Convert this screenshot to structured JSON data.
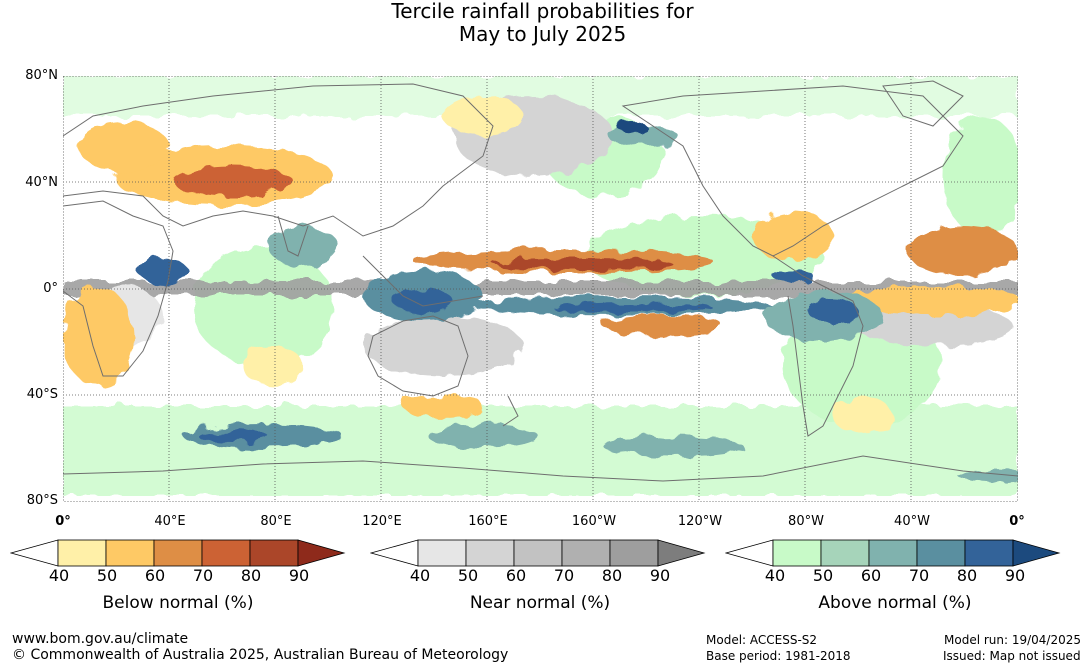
{
  "title": {
    "line1": "Tercile rainfall probabilities for",
    "line2": "May to July 2025"
  },
  "map": {
    "lat_labels": [
      "80°N",
      "40°N",
      "0°",
      "40°S",
      "80°S"
    ],
    "lon_labels": [
      "0°",
      "40°E",
      "80°E",
      "120°E",
      "160°E",
      "160°W",
      "120°W",
      "80°W",
      "40°W",
      "0°"
    ],
    "colors": {
      "ocean_land_base": "#ffffff",
      "coastline": "#6e6e6e",
      "gridline": "#555555"
    }
  },
  "colorbars": [
    {
      "id": "below",
      "title": "Below normal (%)",
      "ticks": [
        "40",
        "50",
        "60",
        "70",
        "80",
        "90"
      ],
      "colors": [
        "#fff0a8",
        "#fec965",
        "#de8e45",
        "#cc6234",
        "#ab4629",
        "#8e2a1b"
      ]
    },
    {
      "id": "near",
      "title": "Near normal (%)",
      "ticks": [
        "40",
        "50",
        "60",
        "70",
        "80",
        "90"
      ],
      "colors": [
        "#e6e6e6",
        "#d4d4d4",
        "#c2c2c2",
        "#b0b0b0",
        "#9e9e9e",
        "#7d7d7d"
      ]
    },
    {
      "id": "above",
      "title": "Above normal (%)",
      "ticks": [
        "40",
        "50",
        "60",
        "70",
        "80",
        "90"
      ],
      "colors": [
        "#c8fac8",
        "#a6d4ba",
        "#80b2ae",
        "#5a8fa0",
        "#336399",
        "#1c4a7e"
      ]
    }
  ],
  "footer": {
    "url": "www.bom.gov.au/climate",
    "copyright": "© Commonwealth of Australia 2025, Australian Bureau of Meteorology",
    "model": "Model: ACCESS-S2",
    "base_period": "Base period: 1981-2018",
    "model_run": "Model run: 19/04/2025",
    "issued": "Issued: Map not issued"
  }
}
